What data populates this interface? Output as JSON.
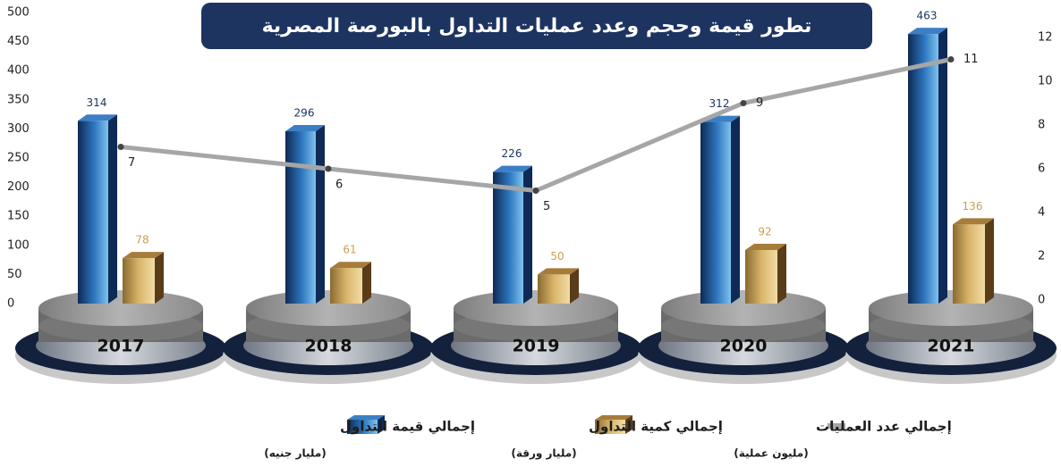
{
  "chart_data": {
    "type": "bar",
    "title": "تطور قيمة وحجم وعدد عمليات التداول بالبورصة المصرية",
    "categories": [
      "2017",
      "2018",
      "2019",
      "2020",
      "2021"
    ],
    "series": [
      {
        "name": "إجمالي قيمة التداول",
        "unit": "(مليار جنيه)",
        "color": "#1f5f9e",
        "values": [
          314,
          296,
          226,
          312,
          463
        ]
      },
      {
        "name": "إجمالي كمية التداول",
        "unit": "(مليار ورقة)",
        "color": "#c9a052",
        "values": [
          78,
          61,
          50,
          92,
          136
        ]
      },
      {
        "name": "إجمالي عدد العمليات",
        "unit": "(مليون عملية)",
        "color": "#a6a6a6",
        "values": [
          7,
          6,
          5,
          9,
          11
        ],
        "axis": "y2",
        "type": "line"
      }
    ],
    "ylim": [
      0,
      500
    ],
    "yticks": [
      0,
      50,
      100,
      150,
      200,
      250,
      300,
      350,
      400,
      450,
      500
    ],
    "y2lim": [
      0,
      12
    ],
    "y2ticks": [
      0,
      2,
      4,
      6,
      8,
      10,
      12
    ]
  }
}
